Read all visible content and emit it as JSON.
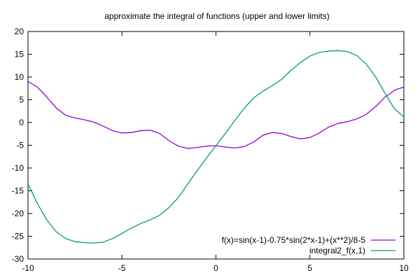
{
  "chart_data": {
    "type": "line",
    "title": "approximate the integral of functions (upper and lower limits)",
    "xlabel": "",
    "ylabel": "",
    "xlim": [
      -10,
      10
    ],
    "ylim": [
      -30,
      20
    ],
    "grid": false,
    "legend_position": "bottom-right",
    "x_ticks": [
      -10,
      -5,
      0,
      5,
      10
    ],
    "y_ticks": [
      -30,
      -25,
      -20,
      -15,
      -10,
      -5,
      0,
      5,
      10,
      15,
      20
    ],
    "series": [
      {
        "name": "f(x)=sin(x-1)-0.75*sin(2*x-1)+(x**2)/8-5",
        "color": "#9400d3",
        "x": [
          -10,
          -9.5,
          -9,
          -8.5,
          -8,
          -7.5,
          -7,
          -6.5,
          -6,
          -5.5,
          -5,
          -4.5,
          -4,
          -3.5,
          -3,
          -2.5,
          -2,
          -1.5,
          -1,
          -0.5,
          0,
          0.5,
          1,
          1.5,
          2,
          2.5,
          3,
          3.5,
          4,
          4.5,
          5,
          5.5,
          6,
          6.5,
          7,
          7.5,
          8,
          8.5,
          9,
          9.5,
          10
        ],
        "y": [
          9.0,
          7.8,
          5.6,
          3.2,
          1.6,
          1.0,
          0.6,
          0.1,
          -0.8,
          -1.8,
          -2.3,
          -2.2,
          -1.8,
          -1.7,
          -2.4,
          -4.0,
          -5.2,
          -5.7,
          -5.5,
          -5.2,
          -5.1,
          -5.4,
          -5.6,
          -5.3,
          -4.3,
          -2.8,
          -2.2,
          -2.4,
          -3.1,
          -3.6,
          -3.3,
          -2.3,
          -1.0,
          -0.2,
          0.2,
          0.8,
          1.8,
          3.5,
          5.6,
          7.1,
          7.8
        ]
      },
      {
        "name": "integral2_f(x,1)",
        "color": "#009e73",
        "x": [
          -10,
          -9.5,
          -9,
          -8.5,
          -8,
          -7.5,
          -7,
          -6.5,
          -6,
          -5.5,
          -5,
          -4.5,
          -4,
          -3.5,
          -3,
          -2.5,
          -2,
          -1.5,
          -1,
          -0.5,
          0,
          0.5,
          1,
          1.5,
          2,
          2.5,
          3,
          3.5,
          4,
          4.5,
          5,
          5.5,
          6,
          6.5,
          7,
          7.5,
          8,
          8.5,
          9,
          9.5,
          10
        ],
        "y": [
          -13.5,
          -17.8,
          -21.4,
          -24.0,
          -25.5,
          -26.2,
          -26.4,
          -26.5,
          -26.3,
          -25.5,
          -24.4,
          -23.2,
          -22.2,
          -21.4,
          -20.4,
          -18.7,
          -16.5,
          -13.5,
          -10.6,
          -7.8,
          -5.1,
          -2.4,
          0.4,
          3.1,
          5.4,
          6.9,
          8.1,
          9.5,
          11.5,
          13.2,
          14.6,
          15.4,
          15.7,
          15.8,
          15.6,
          14.7,
          12.8,
          10.0,
          6.4,
          3.0,
          1.2
        ]
      }
    ]
  }
}
